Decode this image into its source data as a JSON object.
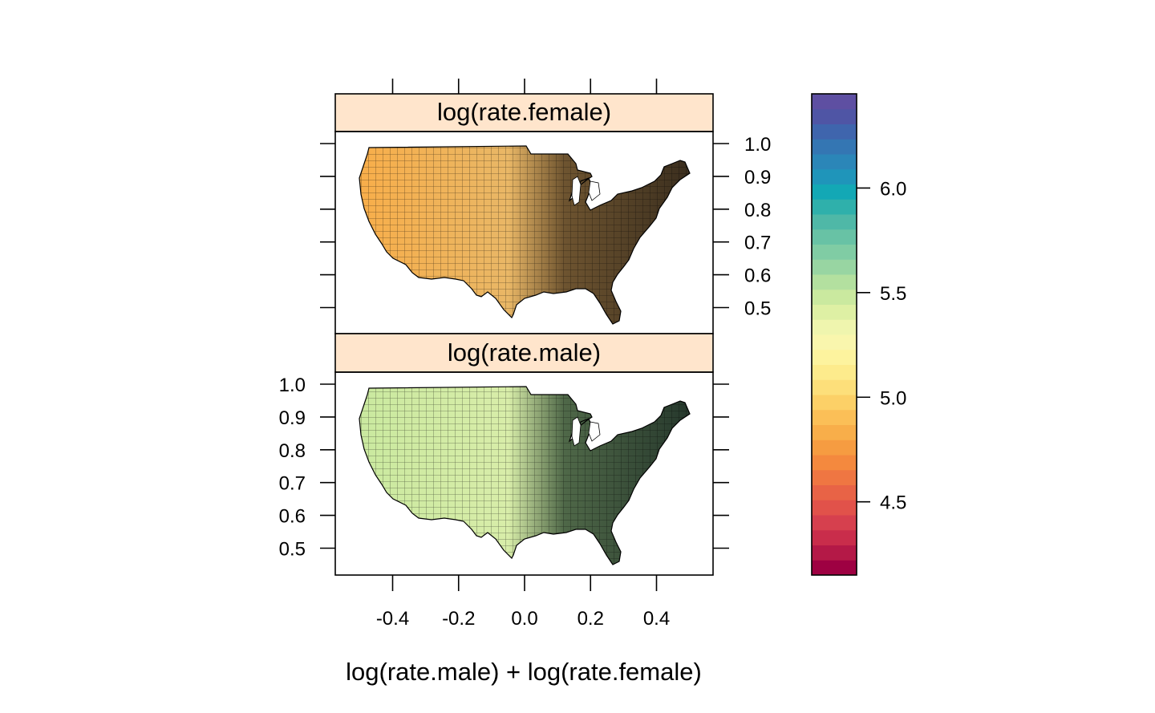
{
  "chart_data": {
    "type": "heatmap",
    "subtype": "choropleth-map",
    "map": "United States counties",
    "xlabel": "log(rate.male) + log(rate.female)",
    "x_ticks": [
      "-0.4",
      "-0.2",
      "0.0",
      "0.2",
      "0.4"
    ],
    "x_tick_values": [
      -0.4,
      -0.2,
      0.0,
      0.2,
      0.4
    ],
    "y_ticks": [
      "1.0",
      "0.9",
      "0.8",
      "0.7",
      "0.6",
      "0.5"
    ],
    "y_tick_values": [
      1.0,
      0.9,
      0.8,
      0.7,
      0.6,
      0.5
    ],
    "panels": [
      {
        "strip": "log(rate.female)",
        "palette_position": "orange-yellow (lower values, ~4.6-5.4)"
      },
      {
        "strip": "log(rate.male)",
        "palette_position": "yellow-green (higher values, ~5.2-5.8)"
      }
    ],
    "colorkey": {
      "ticks": [
        "4.5",
        "5.0",
        "5.5",
        "6.0"
      ],
      "tick_values": [
        4.5,
        5.0,
        5.5,
        6.0
      ],
      "range": [
        4.15,
        6.45
      ],
      "colors": [
        "#9E0142",
        "#B41947",
        "#C92D4B",
        "#D6404E",
        "#E1524A",
        "#E86346",
        "#EF7642",
        "#F4893E",
        "#F69C41",
        "#F8AE4A",
        "#FBBF57",
        "#FCD067",
        "#FDDF7A",
        "#FDEB8C",
        "#FDF39E",
        "#F9F6AD",
        "#EFF5AE",
        "#DEF0A4",
        "#CAE99F",
        "#B3E09F",
        "#98D5A2",
        "#80CCA4",
        "#68C2A5",
        "#4FB8A7",
        "#2FB0AB",
        "#13A8B5",
        "#1F95BA",
        "#2B86B8",
        "#3476B3",
        "#3F65AD",
        "#4F55A5",
        "#5E4FA2"
      ]
    },
    "grid": false,
    "legend_placement": "right"
  }
}
